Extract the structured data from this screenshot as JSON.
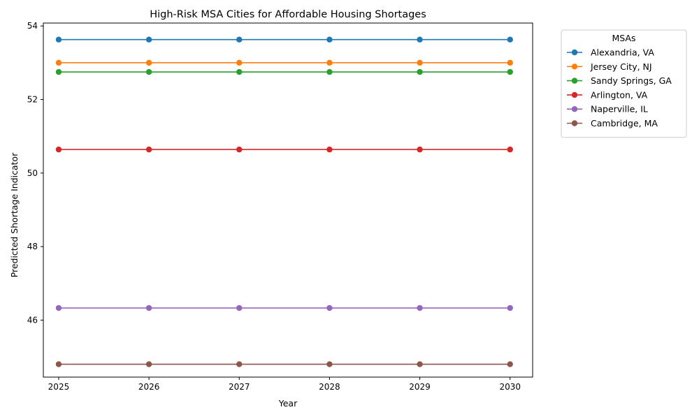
{
  "chart_data": {
    "type": "line",
    "title": "High-Risk MSA Cities for Affordable Housing Shortages",
    "xlabel": "Year",
    "ylabel": "Predicted Shortage Indicator",
    "x": [
      2025,
      2026,
      2027,
      2028,
      2029,
      2030
    ],
    "xlim": [
      2024.83,
      2030.25
    ],
    "ylim": [
      44.45,
      54.08
    ],
    "yticks": [
      46,
      48,
      50,
      52,
      54
    ],
    "grid": false,
    "legend": {
      "title": "MSAs",
      "placement": "outside-top-right"
    },
    "series": [
      {
        "name": "Alexandria, VA",
        "color": "#1f77b4",
        "values": [
          53.63,
          53.63,
          53.63,
          53.63,
          53.63,
          53.63
        ]
      },
      {
        "name": "Jersey City, NJ",
        "color": "#ff7f0e",
        "values": [
          53.0,
          53.0,
          53.0,
          53.0,
          53.0,
          53.0
        ]
      },
      {
        "name": "Sandy Springs, GA",
        "color": "#2ca02c",
        "values": [
          52.75,
          52.75,
          52.75,
          52.75,
          52.75,
          52.75
        ]
      },
      {
        "name": "Arlington, VA",
        "color": "#d62728",
        "values": [
          50.64,
          50.64,
          50.64,
          50.64,
          50.64,
          50.64
        ]
      },
      {
        "name": "Naperville, IL",
        "color": "#9467bd",
        "values": [
          46.33,
          46.33,
          46.33,
          46.33,
          46.33,
          46.33
        ]
      },
      {
        "name": "Cambridge, MA",
        "color": "#8c564b",
        "values": [
          44.8,
          44.8,
          44.8,
          44.8,
          44.8,
          44.8
        ]
      }
    ]
  }
}
